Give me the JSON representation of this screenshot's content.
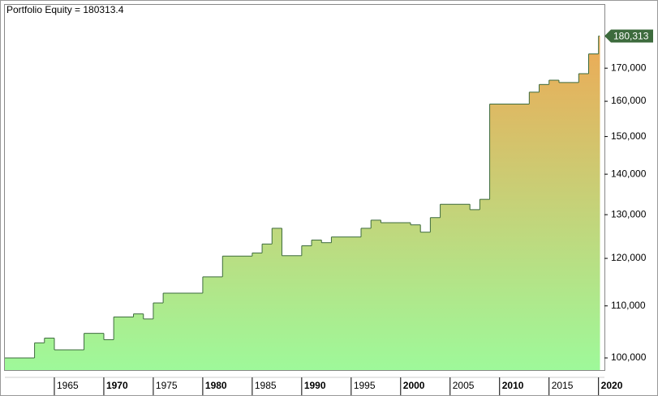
{
  "chart_data": {
    "type": "step-area",
    "title": "Portfolio Equity = 180313.4",
    "series": [
      {
        "name": "Portfolio Equity",
        "color": "#3d6b3d",
        "x": [
          1960,
          1963,
          1964,
          1965,
          1968,
          1970,
          1971,
          1973,
          1974,
          1975,
          1976,
          1980,
          1982,
          1985,
          1986,
          1987,
          1988,
          1990,
          1991,
          1992,
          1993,
          1996,
          1997,
          1998,
          2001,
          2002,
          2003,
          2004,
          2007,
          2008,
          2009,
          2013,
          2014,
          2015,
          2016,
          2018,
          2019,
          2020
        ],
        "values": [
          100000,
          102800,
          103700,
          101500,
          104600,
          103400,
          107800,
          108400,
          107400,
          110600,
          112600,
          116000,
          120500,
          121200,
          123200,
          126800,
          120600,
          122800,
          124100,
          123500,
          124800,
          126800,
          128700,
          128100,
          127600,
          125900,
          129300,
          132500,
          131200,
          133700,
          159200,
          162700,
          165000,
          166300,
          165600,
          168300,
          174500,
          180313.4
        ],
        "value_labels": [
          null,
          null,
          null,
          null,
          null,
          null,
          null,
          null,
          null,
          null,
          null,
          null,
          null,
          null,
          null,
          null,
          null,
          null,
          null,
          null,
          null,
          null,
          null,
          null,
          null,
          null,
          null,
          null,
          null,
          null,
          null,
          null,
          null,
          null,
          null,
          null,
          null,
          "180,313"
        ]
      }
    ],
    "fill_top_color": "#f5a24f",
    "fill_bottom_color": "#9ef99a",
    "log_y": true,
    "xlim": [
      1960,
      2020.6
    ],
    "xticks": [
      1965,
      1970,
      1975,
      1980,
      1985,
      1990,
      1995,
      2000,
      2005,
      2010,
      2015,
      2020
    ],
    "ylim": [
      97800,
      190900
    ],
    "yticks": [
      {
        "value": 100000,
        "label": "100,000"
      },
      {
        "value": 110000,
        "label": "110,000"
      },
      {
        "value": 120000,
        "label": "120,000"
      },
      {
        "value": 130000,
        "label": "130,000"
      },
      {
        "value": 140000,
        "label": "140,000"
      },
      {
        "value": 150000,
        "label": "150,000"
      },
      {
        "value": 160000,
        "label": "160,000"
      },
      {
        "value": 170000,
        "label": "170,000"
      }
    ]
  }
}
